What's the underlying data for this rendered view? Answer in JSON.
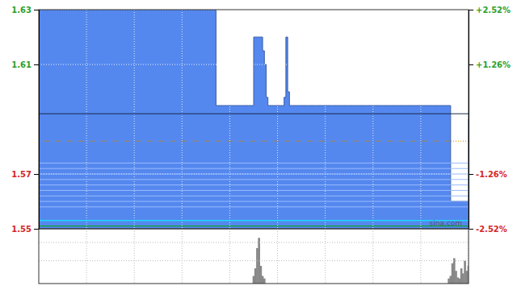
{
  "chart_data": [
    {
      "type": "step_area",
      "values": [
        1.63,
        1.63,
        1.63,
        1.63,
        1.63,
        1.63,
        1.63,
        1.63,
        1.63,
        1.63,
        1.63,
        1.63,
        1.63,
        1.63,
        1.63,
        1.63,
        1.63,
        1.63,
        1.63,
        1.63,
        1.63,
        1.63,
        1.63,
        1.63,
        1.63,
        1.63,
        1.63,
        1.63,
        1.63,
        1.63,
        1.63,
        1.63,
        1.63,
        1.63,
        1.63,
        1.63,
        1.63,
        1.63,
        1.63,
        1.63,
        1.63,
        1.63,
        1.63,
        1.63,
        1.63,
        1.63,
        1.63,
        1.63,
        1.63,
        1.63,
        1.63,
        1.63,
        1.63,
        1.63,
        1.63,
        1.63,
        1.63,
        1.63,
        1.63,
        1.63,
        1.63,
        1.63,
        1.63,
        1.63,
        1.63,
        1.63,
        1.63,
        1.63,
        1.63,
        1.63,
        1.63,
        1.63,
        1.63,
        1.63,
        1.63,
        1.63,
        1.63,
        1.63,
        1.63,
        1.63,
        1.63,
        1.63,
        1.63,
        1.63,
        1.63,
        1.63,
        1.63,
        1.63,
        1.63,
        1.63,
        1.63,
        1.63,
        1.63,
        1.63,
        1.63,
        1.63,
        1.63,
        1.63,
        1.63,
        1.595,
        1.595,
        1.595,
        1.595,
        1.595,
        1.595,
        1.595,
        1.595,
        1.595,
        1.595,
        1.595,
        1.595,
        1.595,
        1.595,
        1.595,
        1.595,
        1.595,
        1.595,
        1.595,
        1.595,
        1.595,
        1.62,
        1.62,
        1.62,
        1.62,
        1.62,
        1.615,
        1.61,
        1.598,
        1.595,
        1.595,
        1.595,
        1.595,
        1.595,
        1.595,
        1.595,
        1.595,
        1.595,
        1.598,
        1.62,
        1.6,
        1.595,
        1.595,
        1.595,
        1.595,
        1.595,
        1.595,
        1.595,
        1.595,
        1.595,
        1.595,
        1.595,
        1.595,
        1.595,
        1.595,
        1.595,
        1.595,
        1.595,
        1.595,
        1.595,
        1.595,
        1.595,
        1.595,
        1.595,
        1.595,
        1.595,
        1.595,
        1.595,
        1.595,
        1.595,
        1.595,
        1.595,
        1.595,
        1.595,
        1.595,
        1.595,
        1.595,
        1.595,
        1.595,
        1.595,
        1.595,
        1.595,
        1.595,
        1.595,
        1.595,
        1.595,
        1.595,
        1.595,
        1.595,
        1.595,
        1.595,
        1.595,
        1.595,
        1.595,
        1.595,
        1.595,
        1.595,
        1.595,
        1.595,
        1.595,
        1.595,
        1.595,
        1.595,
        1.595,
        1.595,
        1.595,
        1.595,
        1.595,
        1.595,
        1.595,
        1.595,
        1.595,
        1.595,
        1.595,
        1.595,
        1.595,
        1.595,
        1.595,
        1.595,
        1.595,
        1.595,
        1.595,
        1.595,
        1.595,
        1.595,
        1.595,
        1.595,
        1.595,
        1.595,
        1.595,
        1.595,
        1.56,
        1.56,
        1.56,
        1.56,
        1.56,
        1.56,
        1.56,
        1.56,
        1.56,
        1.56,
        1.59
      ],
      "color": "#5588ee",
      "xlim": [
        0,
        240
      ],
      "xticks": [
        26.666666666666668,
        53.333333333333336,
        80,
        106.66666666666667,
        133.33333333333334,
        160,
        186.66666666666666,
        213.33333333333334,
        240
      ],
      "ylim": [
        1.55,
        1.63
      ],
      "yticks": [
        1.63,
        1.61,
        1.57,
        1.55
      ],
      "y2lim": [
        -2.52,
        2.52
      ],
      "y2ticks": [
        {
          "value": 2.52,
          "label": "+2.52%"
        },
        {
          "value": 1.26,
          "label": "+1.26%"
        },
        {
          "value": -1.26,
          "label": "-1.26%"
        },
        {
          "value": -2.52,
          "label": "-2.52%"
        }
      ],
      "grid": true,
      "tick_labels": "y",
      "hlines": [
        {
          "value": 1.558,
          "color": "#99bbff",
          "line_style": "solid"
        },
        {
          "value": 1.56,
          "color": "#99bbff",
          "line_style": "solid"
        },
        {
          "value": 1.562,
          "color": "#99bbff",
          "line_style": "solid"
        },
        {
          "value": 1.564,
          "color": "#99bbff",
          "line_style": "solid"
        },
        {
          "value": 1.566,
          "color": "#99bbff",
          "line_style": "solid"
        },
        {
          "value": 1.568,
          "color": "#99bbff",
          "line_style": "solid"
        },
        {
          "value": 1.57,
          "color": "#99bbff",
          "line_style": "solid"
        },
        {
          "value": 1.572,
          "color": "#99bbff",
          "line_style": "solid"
        },
        {
          "value": 1.574,
          "color": "#99bbff",
          "line_style": "solid"
        },
        {
          "value": 1.592,
          "color": "#1a2a4a",
          "line_style": "solid"
        },
        {
          "value": 1.582,
          "color": "#cc8800",
          "line_style": "dotted"
        },
        {
          "value": 1.553,
          "color": "#00ffff",
          "line_style": "solid"
        },
        {
          "value": 1.551,
          "color": "#00aa00",
          "line_style": "solid"
        }
      ],
      "annotations": [
        {
          "text": "sina.com"
        }
      ]
    },
    {
      "type": "bar",
      "x": [
        120,
        121,
        122,
        123,
        124,
        125,
        126,
        229,
        230,
        231,
        232,
        233,
        234,
        235,
        236,
        237,
        238,
        239,
        240
      ],
      "values": [
        0.16666666666666666,
        0.3333333333333333,
        0.7777777777777777,
        1,
        0.3888888888888889,
        0.16666666666666666,
        0.11111111111111112,
        0.11111111111111112,
        0.16666666666666666,
        0.4444444444444445,
        0.5555555555555556,
        0.2777777777777778,
        0.13333333333333333,
        0.11111111111111112,
        0.3333333333333333,
        0.2222222222222222,
        0.5,
        0.2777777777777778,
        0.3888888888888889
      ],
      "color": "#888888",
      "xlim": [
        0,
        240
      ],
      "xticks": [
        26.666666666666668,
        53.333333333333336,
        80,
        106.66666666666667,
        133.33333333333334,
        160,
        186.66666666666666,
        213.33333333333334,
        240
      ],
      "ylim": [
        0,
        1.2
      ],
      "yticks": [
        0.5,
        0.9
      ],
      "grid": true,
      "tick_labels": false
    }
  ]
}
